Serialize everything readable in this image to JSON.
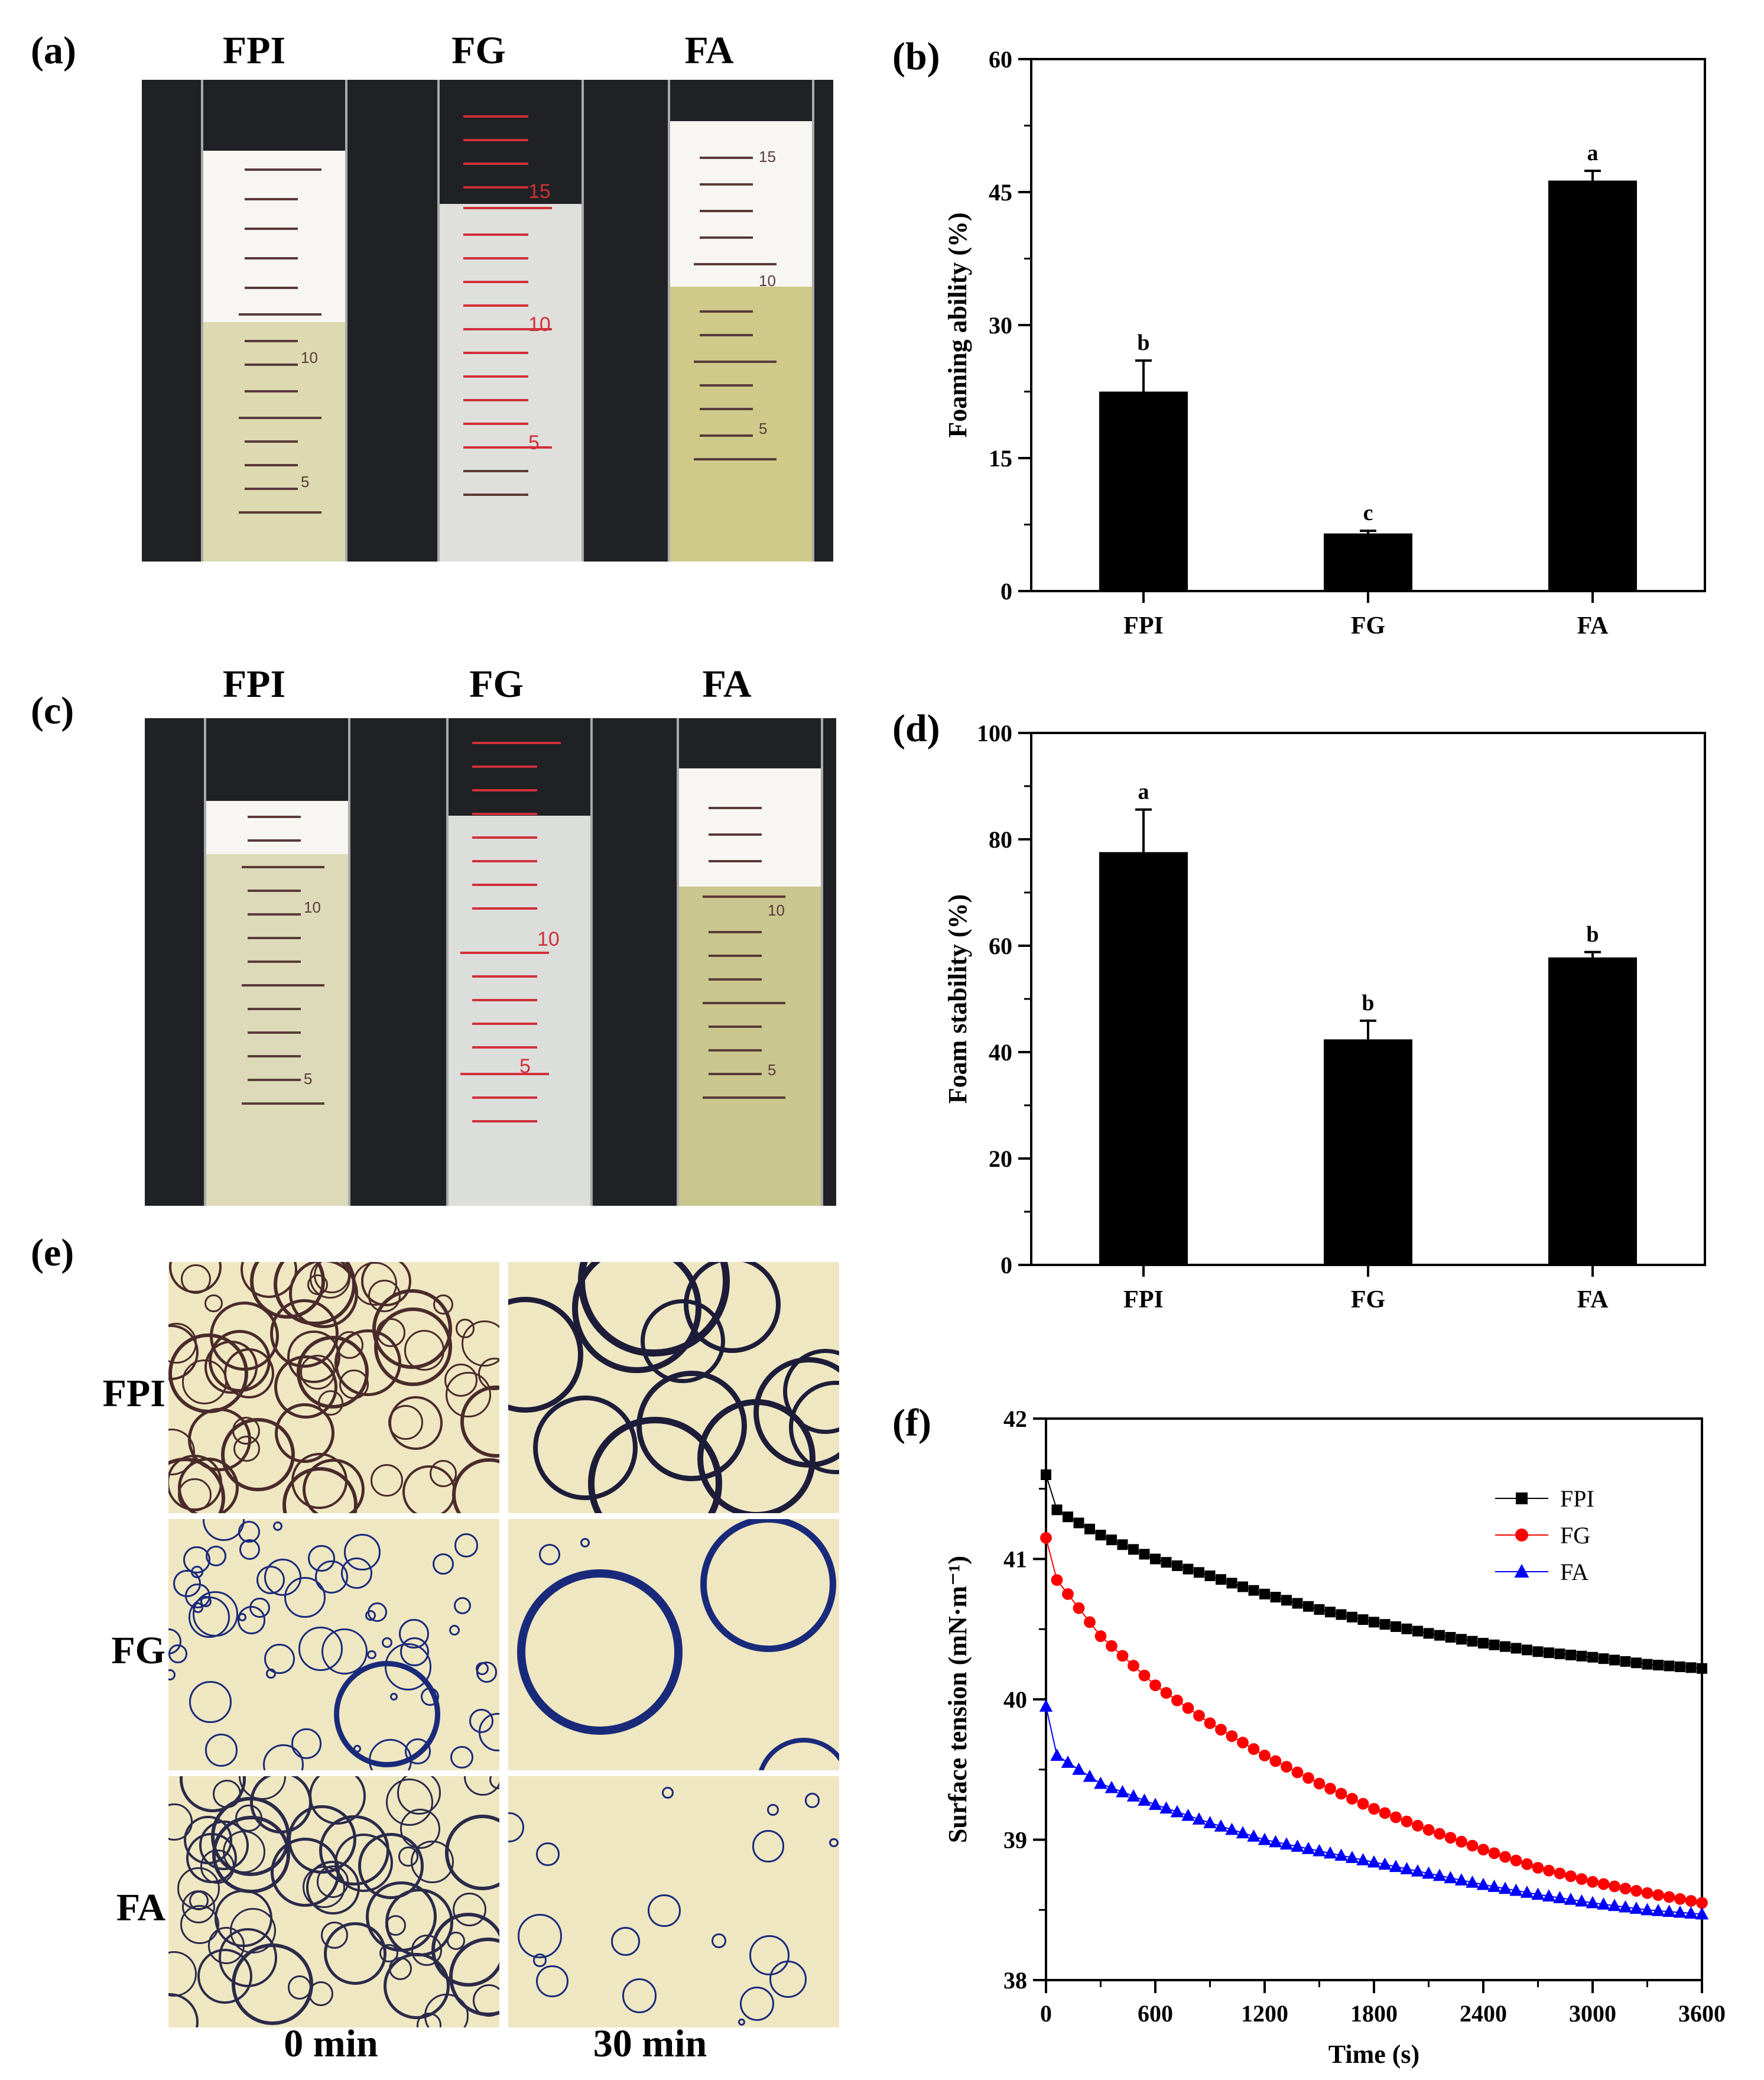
{
  "panels": {
    "a": "(a)",
    "b": "(b)",
    "c": "(c)",
    "d": "(d)",
    "e": "(e)",
    "f": "(f)"
  },
  "samples": [
    "FPI",
    "FG",
    "FA"
  ],
  "micro_times": [
    "0 min",
    "30 min"
  ],
  "cylinder_marks": {
    "fifteen": "15",
    "ten": "10",
    "five": "5"
  },
  "chart_data": [
    {
      "id": "b",
      "type": "bar",
      "categories": [
        "FPI",
        "FG",
        "FA"
      ],
      "values": [
        22.5,
        6.5,
        46.3
      ],
      "errors": [
        3.5,
        0.3,
        1.1
      ],
      "letters": [
        "b",
        "c",
        "a"
      ],
      "ylabel": "Foaming ability (%)",
      "ylim": [
        0,
        60
      ],
      "yticks": [
        "0",
        "15",
        "30",
        "45",
        "60"
      ]
    },
    {
      "id": "d",
      "type": "bar",
      "categories": [
        "FPI",
        "FG",
        "FA"
      ],
      "values": [
        77.6,
        42.4,
        57.8
      ],
      "errors": [
        8.0,
        3.5,
        1.0
      ],
      "letters": [
        "a",
        "b",
        "b"
      ],
      "ylabel": "Foam stability (%)",
      "ylim": [
        0,
        100
      ],
      "yticks": [
        "0",
        "20",
        "40",
        "60",
        "80",
        "100"
      ]
    },
    {
      "id": "f",
      "type": "line",
      "xlabel": "Time (s)",
      "ylabel": "Surface tension (mN·m⁻¹)",
      "xlim": [
        0,
        3600
      ],
      "ylim": [
        38,
        42
      ],
      "xticks": [
        "0",
        "600",
        "1200",
        "1800",
        "2400",
        "3000",
        "3600"
      ],
      "yticks": [
        "38",
        "39",
        "40",
        "41",
        "42"
      ],
      "legend": "top-right",
      "series": [
        {
          "name": "FPI",
          "color": "#000000",
          "marker": "square",
          "x": [
            0,
            60,
            120,
            300,
            600,
            900,
            1200,
            1500,
            1800,
            2100,
            2400,
            2700,
            3000,
            3300,
            3600
          ],
          "y": [
            41.6,
            41.35,
            41.3,
            41.17,
            41.0,
            40.88,
            40.75,
            40.64,
            40.55,
            40.47,
            40.4,
            40.34,
            40.3,
            40.25,
            40.22
          ]
        },
        {
          "name": "FG",
          "color": "#ff0000",
          "marker": "circle",
          "x": [
            0,
            60,
            120,
            300,
            600,
            900,
            1200,
            1500,
            1800,
            2100,
            2400,
            2700,
            3000,
            3300,
            3600
          ],
          "y": [
            41.15,
            40.85,
            40.75,
            40.45,
            40.1,
            39.83,
            39.6,
            39.4,
            39.22,
            39.07,
            38.93,
            38.8,
            38.7,
            38.62,
            38.55
          ]
        },
        {
          "name": "FA",
          "color": "#0000ff",
          "marker": "triangle",
          "x": [
            0,
            60,
            120,
            300,
            600,
            900,
            1200,
            1500,
            1800,
            2100,
            2400,
            2700,
            3000,
            3300,
            3600
          ],
          "y": [
            39.95,
            39.6,
            39.55,
            39.4,
            39.25,
            39.12,
            39.0,
            38.92,
            38.84,
            38.76,
            38.68,
            38.61,
            38.55,
            38.5,
            38.47
          ]
        }
      ]
    }
  ]
}
